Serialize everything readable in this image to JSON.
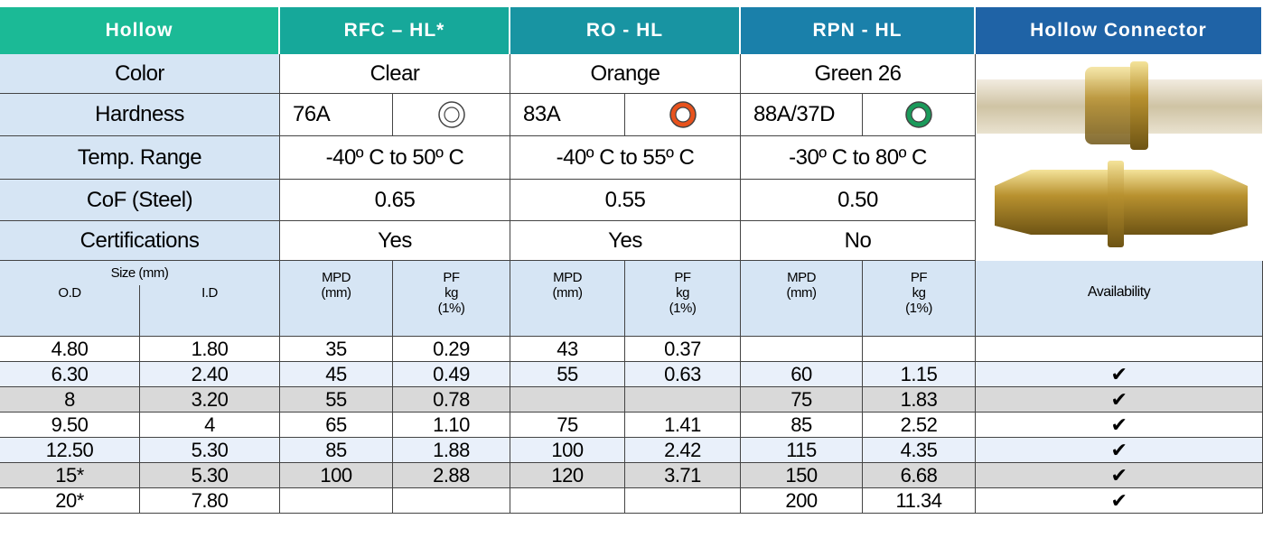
{
  "header": [
    "Hollow",
    "RFC – HL*",
    "RO - HL",
    "RPN - HL",
    "Hollow Connector"
  ],
  "properties": [
    {
      "label": "Color",
      "values": [
        "Clear",
        "Orange",
        "Green 26"
      ]
    },
    {
      "label": "Hardness",
      "values": [
        "76A",
        "83A",
        "88A/37D"
      ]
    },
    {
      "label": "Temp. Range",
      "values": [
        "-40º C to 50º C",
        "-40º C to 55º C",
        "-30º C to 80º C"
      ]
    },
    {
      "label": "CoF (Steel)",
      "values": [
        "0.65",
        "0.55",
        "0.50"
      ]
    },
    {
      "label": "Certifications",
      "values": [
        "Yes",
        "Yes",
        "No"
      ]
    }
  ],
  "subheader": {
    "size": "Size (mm)",
    "od": "O.D",
    "id": "I.D",
    "mpd": [
      "MPD",
      "(mm)"
    ],
    "pf": [
      "PF",
      "kg",
      "(1%)"
    ],
    "availability": "Availability"
  },
  "rows": [
    [
      "4.80",
      "1.80",
      "35",
      "0.29",
      "43",
      "0.37",
      null,
      null,
      null
    ],
    [
      "6.30",
      "2.40",
      "45",
      "0.49",
      "55",
      "0.63",
      "60",
      "1.15",
      "✔"
    ],
    [
      "8",
      "3.20",
      "55",
      "0.78",
      null,
      null,
      "75",
      "1.83",
      "✔"
    ],
    [
      "9.50",
      "4",
      "65",
      "1.10",
      "75",
      "1.41",
      "85",
      "2.52",
      "✔"
    ],
    [
      "12.50",
      "5.30",
      "85",
      "1.88",
      "100",
      "2.42",
      "115",
      "4.35",
      "✔"
    ],
    [
      "15*",
      "5.30",
      "100",
      "2.88",
      "120",
      "3.71",
      "150",
      "6.68",
      "✔"
    ],
    [
      "20*",
      "7.80",
      null,
      null,
      null,
      null,
      "200",
      "11.34",
      "✔"
    ]
  ]
}
